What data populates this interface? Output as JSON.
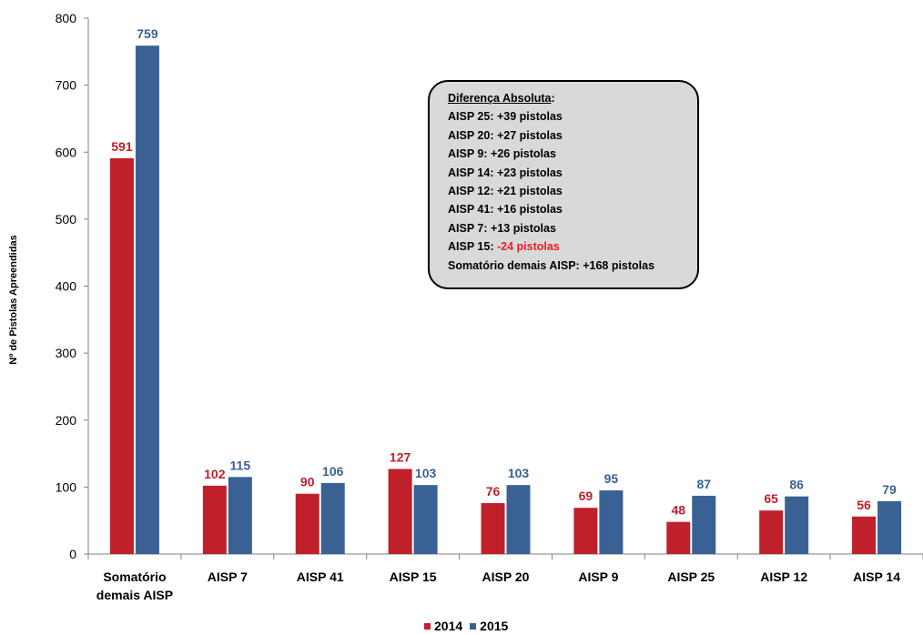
{
  "chart_data": {
    "type": "bar",
    "ylabel": "Nº de Pistolas Apreendidas",
    "ylim": [
      0,
      800
    ],
    "yticks": [
      "0",
      "100",
      "200",
      "300",
      "400",
      "500",
      "600",
      "700",
      "800"
    ],
    "categories": [
      [
        "Somatório",
        "demais AISP"
      ],
      [
        "AISP 7"
      ],
      [
        "AISP 41"
      ],
      [
        "AISP 15"
      ],
      [
        "AISP 20"
      ],
      [
        "AISP 9"
      ],
      [
        "AISP 25"
      ],
      [
        "AISP 12"
      ],
      [
        "AISP 14"
      ]
    ],
    "series": [
      {
        "name": "2014",
        "color": "#c0202a",
        "values": [
          591,
          102,
          90,
          127,
          76,
          69,
          48,
          65,
          56
        ]
      },
      {
        "name": "2015",
        "color": "#3a6194",
        "values": [
          759,
          115,
          106,
          103,
          103,
          95,
          87,
          86,
          79
        ]
      }
    ],
    "legend_position": "bottom-center"
  },
  "annotation": {
    "title": "Diferença Absoluta",
    "title_suffix": ":",
    "lines": [
      {
        "label": "AISP 25: ",
        "value": "+39 pistolas",
        "color": "#000000"
      },
      {
        "label": "AISP 20: ",
        "value": "+27 pistolas",
        "color": "#000000"
      },
      {
        "label": "AISP 9: ",
        "value": "+26 pistolas",
        "color": "#000000"
      },
      {
        "label": "AISP 14: ",
        "value": "+23 pistolas",
        "color": "#000000"
      },
      {
        "label": "AISP 12: ",
        "value": "+21 pistolas",
        "color": "#000000"
      },
      {
        "label": "AISP 41: ",
        "value": "+16 pistolas",
        "color": "#000000"
      },
      {
        "label": "AISP 7: ",
        "value": "+13 pistolas",
        "color": "#000000"
      },
      {
        "label": "AISP 15: ",
        "value": "-24 pistolas",
        "color": "#e8212b"
      },
      {
        "label": "Somatório demais AISP: ",
        "value": "+168 pistolas",
        "color": "#000000"
      }
    ]
  },
  "legend": {
    "items": [
      {
        "label": "2014",
        "color": "#c0202a"
      },
      {
        "label": "2015",
        "color": "#3a6194"
      }
    ]
  }
}
